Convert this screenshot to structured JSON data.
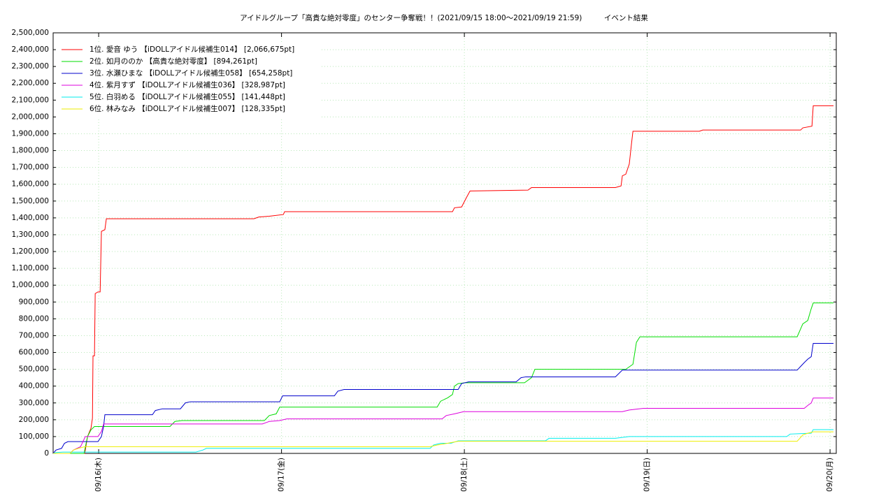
{
  "chart_data": {
    "type": "line",
    "title": "アイドルグループ「高貴な絶対零度」のセンター争奪戦！！(2021/09/15 18:00～2021/09/19 21:59)　　　イベント結果",
    "xlim": [
      15.751,
      20.034
    ],
    "xticks": [
      {
        "value": 16,
        "label": "09/16(木)"
      },
      {
        "value": 17,
        "label": "09/17(金)"
      },
      {
        "value": 18,
        "label": "09/18(土)"
      },
      {
        "value": 19,
        "label": "09/19(日)"
      },
      {
        "value": 20,
        "label": "09/20(月)"
      }
    ],
    "ylim": [
      0,
      2500000
    ],
    "yticks": [
      0,
      {
        "value": 100000,
        "label": "100,000"
      },
      {
        "value": 200000,
        "label": "200,000"
      },
      {
        "value": 300000,
        "label": "300,000"
      },
      {
        "value": 400000,
        "label": "400,000"
      },
      {
        "value": 500000,
        "label": "500,000"
      },
      {
        "value": 600000,
        "label": "600,000"
      },
      {
        "value": 700000,
        "label": "700,000"
      },
      {
        "value": 800000,
        "label": "800,000"
      },
      {
        "value": 900000,
        "label": "900,000"
      },
      {
        "value": 1000000,
        "label": "1,000,000"
      },
      {
        "value": 1100000,
        "label": "1,100,000"
      },
      {
        "value": 1200000,
        "label": "1,200,000"
      },
      {
        "value": 1300000,
        "label": "1,300,000"
      },
      {
        "value": 1400000,
        "label": "1,400,000"
      },
      {
        "value": 1500000,
        "label": "1,500,000"
      },
      {
        "value": 1600000,
        "label": "1,600,000"
      },
      {
        "value": 1700000,
        "label": "1,700,000"
      },
      {
        "value": 1800000,
        "label": "1,800,000"
      },
      {
        "value": 1900000,
        "label": "1,900,000"
      },
      {
        "value": 2000000,
        "label": "2,000,000"
      },
      {
        "value": 2100000,
        "label": "2,100,000"
      },
      {
        "value": 2200000,
        "label": "2,200,000"
      },
      {
        "value": 2300000,
        "label": "2,300,000"
      },
      {
        "value": 2400000,
        "label": "2,400,000"
      },
      {
        "value": 2500000,
        "label": "2,500,000"
      }
    ],
    "grid": true,
    "legend": "upper left",
    "series": [
      {
        "name": "1位. 愛音 ゆう 【iDOLLアイドル候補生014】 [2,066,675pt]",
        "color": "#ff0000",
        "x": [
          15.751,
          15.924,
          15.939,
          15.958,
          15.966,
          15.969,
          15.977,
          15.981,
          15.996,
          16.008,
          16.015,
          16.034,
          16.042,
          16.849,
          16.876,
          16.933,
          17.01,
          17.017,
          17.935,
          17.946,
          17.985,
          18.011,
          18.031,
          18.348,
          18.367,
          18.826,
          18.857,
          18.864,
          18.883,
          18.902,
          18.914,
          18.922,
          19.285,
          19.304,
          19.839,
          19.851,
          19.901,
          19.908,
          20.019
        ],
        "values": [
          0,
          0,
          100000,
          150000,
          210000,
          580000,
          580000,
          950000,
          960000,
          960000,
          1320000,
          1330000,
          1395000,
          1395000,
          1405000,
          1410000,
          1420000,
          1437000,
          1437000,
          1460000,
          1465000,
          1520000,
          1560000,
          1565000,
          1580000,
          1580000,
          1590000,
          1650000,
          1660000,
          1720000,
          1840000,
          1915000,
          1915000,
          1922000,
          1922000,
          1935000,
          1945000,
          2066675,
          2066675
        ]
      },
      {
        "name": "2位. 如月ののか 【高貴な絶対零度】 [894,261pt]",
        "color": "#00dd00",
        "x": [
          15.751,
          15.92,
          15.939,
          15.958,
          15.977,
          16.39,
          16.417,
          16.455,
          16.906,
          16.933,
          16.971,
          16.99,
          17.851,
          17.87,
          17.908,
          17.935,
          17.946,
          17.966,
          18.004,
          18.329,
          18.367,
          18.386,
          18.883,
          18.922,
          18.941,
          18.96,
          19.82,
          19.851,
          19.878,
          19.897,
          19.908,
          20.019
        ],
        "values": [
          0,
          0,
          100000,
          140000,
          160000,
          160000,
          190000,
          195000,
          195000,
          225000,
          235000,
          275000,
          275000,
          310000,
          330000,
          350000,
          400000,
          415000,
          420000,
          420000,
          450000,
          500000,
          500000,
          530000,
          660000,
          693000,
          693000,
          770000,
          790000,
          860000,
          894261,
          894261
        ]
      },
      {
        "name": "3位. 水瀬ひまな 【iDOLLアイドル候補生058】 [654,258pt]",
        "color": "#0000cc",
        "x": [
          15.751,
          15.767,
          15.797,
          15.813,
          15.832,
          15.996,
          16.015,
          16.027,
          16.034,
          16.294,
          16.31,
          16.348,
          16.447,
          16.474,
          16.501,
          16.99,
          17.006,
          17.289,
          17.308,
          17.342,
          17.966,
          17.985,
          18.023,
          18.283,
          18.31,
          18.336,
          18.826,
          18.864,
          19.82,
          19.859,
          19.878,
          19.897,
          19.908,
          20.019
        ],
        "values": [
          0,
          20000,
          30000,
          60000,
          70000,
          70000,
          100000,
          160000,
          230000,
          230000,
          255000,
          265000,
          265000,
          300000,
          307000,
          307000,
          342000,
          342000,
          370000,
          380000,
          380000,
          415000,
          425000,
          425000,
          450000,
          455000,
          455000,
          495000,
          495000,
          540000,
          560000,
          575000,
          654258,
          654258
        ]
      },
      {
        "name": "4位. 紫月すず 【iDOLLアイドル候補生036】 [328,987pt]",
        "color": "#dd00dd",
        "x": [
          15.751,
          15.843,
          15.862,
          15.901,
          15.927,
          15.996,
          16.015,
          16.027,
          16.895,
          16.933,
          16.99,
          17.029,
          17.878,
          17.901,
          17.946,
          17.996,
          18.864,
          18.902,
          18.979,
          19.859,
          19.878,
          19.897,
          19.908,
          20.019
        ],
        "values": [
          0,
          0,
          20000,
          40000,
          100000,
          100000,
          130000,
          175000,
          175000,
          190000,
          195000,
          205000,
          205000,
          225000,
          235000,
          248000,
          248000,
          258000,
          268000,
          268000,
          285000,
          300000,
          328987,
          328987
        ]
      },
      {
        "name": "5位. 白羽める 【iDOLLアイドル候補生055】 [141,448pt]",
        "color": "#00eeee",
        "x": [
          15.751,
          15.767,
          15.805,
          16.532,
          16.57,
          16.589,
          17.813,
          17.832,
          17.87,
          17.927,
          17.966,
          18.444,
          18.463,
          18.826,
          18.902,
          19.763,
          19.782,
          19.897,
          19.908,
          20.019
        ],
        "values": [
          0,
          5000,
          8000,
          8000,
          20000,
          30000,
          30000,
          50000,
          60000,
          60000,
          75000,
          75000,
          90000,
          90000,
          100000,
          100000,
          115000,
          120000,
          141448,
          141448
        ]
      },
      {
        "name": "6位. 林みなみ 【iDOLLアイドル候補生007】 [128,335pt]",
        "color": "#eeee00",
        "x": [
          15.751,
          15.843,
          15.862,
          15.889,
          15.924,
          17.813,
          17.851,
          17.908,
          17.966,
          19.82,
          19.851,
          19.878,
          19.908,
          20.019
        ],
        "values": [
          0,
          0,
          20000,
          30000,
          40000,
          40000,
          50000,
          60000,
          72000,
          72000,
          110000,
          120000,
          128335,
          128335
        ]
      }
    ]
  }
}
